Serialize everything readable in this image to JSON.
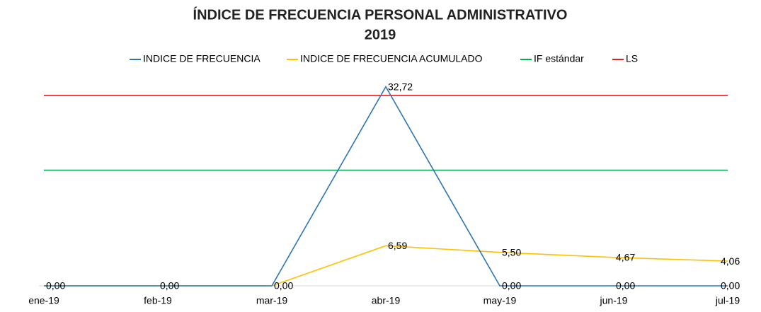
{
  "chart_data": {
    "type": "line",
    "title": "ÍNDICE DE FRECUENCIA PERSONAL ADMINISTRATIVO",
    "subtitle": "2019",
    "categories": [
      "ene-19",
      "feb-19",
      "mar-19",
      "abr-19",
      "may-19",
      "jun-19",
      "jul-19"
    ],
    "series": [
      {
        "name": "INDICE DE FRECUENCIA",
        "color": "#2e75b6",
        "values": [
          0,
          0,
          0,
          32.72,
          0,
          0,
          0
        ],
        "value_labels": [
          null,
          null,
          null,
          "32,72",
          "0,00",
          "0,00",
          "0,00"
        ]
      },
      {
        "name": "INDICE DE FRECUENCIA ACUMULADO",
        "color": "#ffc000",
        "values": [
          0,
          0,
          0,
          6.59,
          5.5,
          4.67,
          4.06
        ],
        "value_labels": [
          "0,00",
          "0,00",
          "0,00",
          "6,59",
          "5,50",
          "4,67",
          "4,06"
        ]
      },
      {
        "name": "IF estándar",
        "color": "#00b050",
        "values": [
          19,
          19,
          19,
          19,
          19,
          19,
          19
        ]
      },
      {
        "name": "LS",
        "color": "#e02020",
        "values": [
          31.3,
          31.3,
          31.3,
          31.3,
          31.3,
          31.3,
          31.3
        ]
      }
    ],
    "ylim": [
      0,
      35
    ],
    "legend": "top"
  }
}
